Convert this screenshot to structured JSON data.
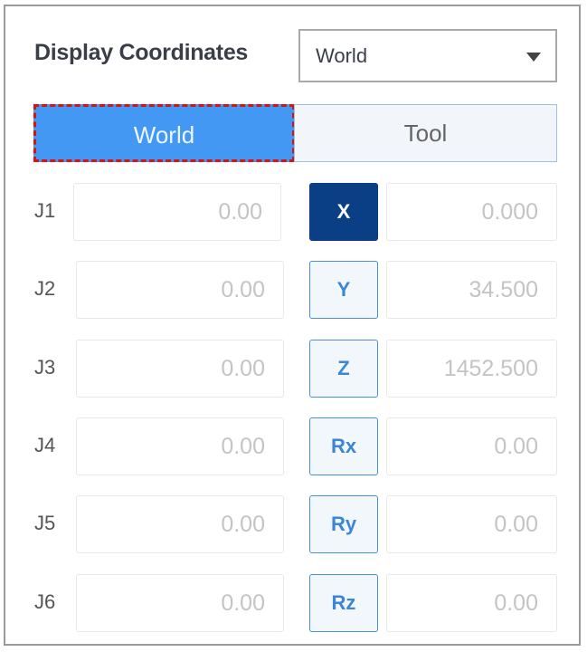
{
  "header": {
    "title": "Display Coordinates",
    "select_value": "World"
  },
  "toggle": {
    "options": [
      "World",
      "Tool"
    ],
    "selected": "World"
  },
  "joints": [
    {
      "label": "J1",
      "value": "0.00"
    },
    {
      "label": "J2",
      "value": "0.00"
    },
    {
      "label": "J3",
      "value": "0.00"
    },
    {
      "label": "J4",
      "value": "0.00"
    },
    {
      "label": "J5",
      "value": "0.00"
    },
    {
      "label": "J6",
      "value": "0.00"
    }
  ],
  "axes": [
    {
      "label": "X",
      "value": "0.000"
    },
    {
      "label": "Y",
      "value": "34.500"
    },
    {
      "label": "Z",
      "value": "1452.500"
    },
    {
      "label": "Rx",
      "value": "0.00"
    },
    {
      "label": "Ry",
      "value": "0.00"
    },
    {
      "label": "Rz",
      "value": "0.00"
    }
  ],
  "colors": {
    "selected_toggle": "#4298f2",
    "highlight_outline": "#e01010",
    "active_axis": "#0b3f85",
    "axis_text": "#3b86d6"
  }
}
